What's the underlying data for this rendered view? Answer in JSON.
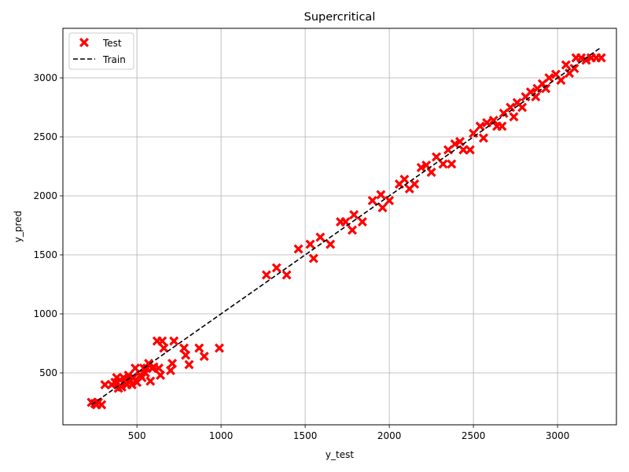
{
  "chart_data": {
    "type": "scatter",
    "title": "Supercritical",
    "xlabel": "y_test",
    "ylabel": "y_pred",
    "xlim": [
      60,
      3350
    ],
    "ylim": [
      60,
      3420
    ],
    "xticks": [
      500,
      1000,
      1500,
      2000,
      2500,
      3000
    ],
    "yticks": [
      500,
      1000,
      1500,
      2000,
      2500,
      3000
    ],
    "grid": true,
    "legend_position": "top-left",
    "series": [
      {
        "name": "Test",
        "marker": "x",
        "color": "#ff0000",
        "points": [
          [
            230,
            250
          ],
          [
            250,
            240
          ],
          [
            260,
            230
          ],
          [
            270,
            250
          ],
          [
            290,
            230
          ],
          [
            310,
            400
          ],
          [
            350,
            400
          ],
          [
            370,
            420
          ],
          [
            380,
            460
          ],
          [
            390,
            370
          ],
          [
            400,
            440
          ],
          [
            410,
            380
          ],
          [
            420,
            460
          ],
          [
            430,
            420
          ],
          [
            440,
            400
          ],
          [
            450,
            480
          ],
          [
            460,
            440
          ],
          [
            470,
            400
          ],
          [
            480,
            460
          ],
          [
            490,
            540
          ],
          [
            500,
            420
          ],
          [
            520,
            480
          ],
          [
            530,
            460
          ],
          [
            540,
            540
          ],
          [
            550,
            500
          ],
          [
            560,
            540
          ],
          [
            570,
            580
          ],
          [
            580,
            430
          ],
          [
            590,
            540
          ],
          [
            600,
            550
          ],
          [
            620,
            770
          ],
          [
            630,
            540
          ],
          [
            640,
            480
          ],
          [
            650,
            770
          ],
          [
            660,
            710
          ],
          [
            700,
            520
          ],
          [
            710,
            580
          ],
          [
            720,
            770
          ],
          [
            780,
            710
          ],
          [
            790,
            650
          ],
          [
            810,
            570
          ],
          [
            870,
            710
          ],
          [
            900,
            640
          ],
          [
            990,
            710
          ],
          [
            1270,
            1330
          ],
          [
            1330,
            1390
          ],
          [
            1390,
            1330
          ],
          [
            1460,
            1550
          ],
          [
            1530,
            1590
          ],
          [
            1550,
            1470
          ],
          [
            1590,
            1650
          ],
          [
            1650,
            1590
          ],
          [
            1710,
            1780
          ],
          [
            1740,
            1780
          ],
          [
            1780,
            1710
          ],
          [
            1790,
            1840
          ],
          [
            1840,
            1780
          ],
          [
            1900,
            1960
          ],
          [
            1950,
            2010
          ],
          [
            1960,
            1900
          ],
          [
            2000,
            1960
          ],
          [
            2060,
            2100
          ],
          [
            2090,
            2140
          ],
          [
            2120,
            2060
          ],
          [
            2150,
            2100
          ],
          [
            2190,
            2240
          ],
          [
            2220,
            2260
          ],
          [
            2250,
            2200
          ],
          [
            2280,
            2330
          ],
          [
            2320,
            2270
          ],
          [
            2350,
            2390
          ],
          [
            2370,
            2270
          ],
          [
            2390,
            2440
          ],
          [
            2420,
            2460
          ],
          [
            2440,
            2390
          ],
          [
            2480,
            2390
          ],
          [
            2500,
            2530
          ],
          [
            2540,
            2590
          ],
          [
            2560,
            2490
          ],
          [
            2580,
            2620
          ],
          [
            2620,
            2640
          ],
          [
            2640,
            2590
          ],
          [
            2670,
            2590
          ],
          [
            2680,
            2700
          ],
          [
            2720,
            2750
          ],
          [
            2740,
            2670
          ],
          [
            2760,
            2790
          ],
          [
            2790,
            2750
          ],
          [
            2810,
            2840
          ],
          [
            2840,
            2880
          ],
          [
            2870,
            2840
          ],
          [
            2880,
            2910
          ],
          [
            2910,
            2950
          ],
          [
            2930,
            2910
          ],
          [
            2950,
            3000
          ],
          [
            2990,
            3030
          ],
          [
            3020,
            2980
          ],
          [
            3050,
            3110
          ],
          [
            3070,
            3040
          ],
          [
            3100,
            3080
          ],
          [
            3110,
            3170
          ],
          [
            3140,
            3170
          ],
          [
            3170,
            3150
          ],
          [
            3200,
            3170
          ],
          [
            3230,
            3170
          ],
          [
            3260,
            3170
          ]
        ]
      },
      {
        "name": "Train",
        "style": "dashed",
        "color": "#000000",
        "points": [
          [
            230,
            230
          ],
          [
            3260,
            3260
          ]
        ]
      }
    ]
  }
}
